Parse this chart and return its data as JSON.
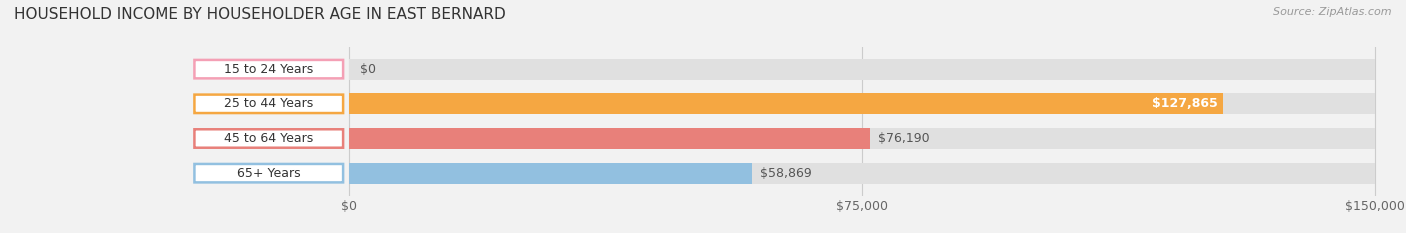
{
  "title": "HOUSEHOLD INCOME BY HOUSEHOLDER AGE IN EAST BERNARD",
  "source": "Source: ZipAtlas.com",
  "categories": [
    "15 to 24 Years",
    "25 to 44 Years",
    "45 to 64 Years",
    "65+ Years"
  ],
  "values": [
    0,
    127865,
    76190,
    58869
  ],
  "bar_colors": [
    "#f4a0b5",
    "#f5a742",
    "#e8807a",
    "#92c0e0"
  ],
  "label_colors": [
    "#555555",
    "#ffffff",
    "#555555",
    "#555555"
  ],
  "bar_labels": [
    "$0",
    "$127,865",
    "$76,190",
    "$58,869"
  ],
  "max_value": 150000,
  "xtick_values": [
    0,
    75000,
    150000
  ],
  "xtick_labels": [
    "$0",
    "$75,000",
    "$150,000"
  ],
  "background_color": "#f2f2f2",
  "bar_bg_color": "#e0e0e0",
  "title_fontsize": 11,
  "label_fontsize": 9,
  "tick_fontsize": 9,
  "bar_height": 0.6,
  "tag_rounding": 0.12,
  "bar_rounding": 0.08
}
